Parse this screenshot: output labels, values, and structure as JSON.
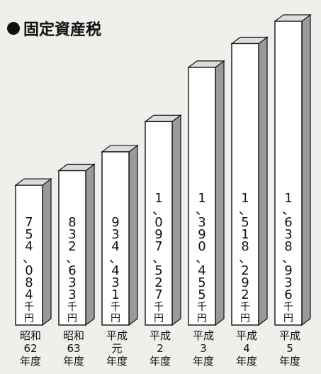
{
  "title": "固定資産税",
  "chart_data": {
    "type": "bar",
    "title": "固定資産税",
    "unit": "千円",
    "categories": [
      [
        "昭和",
        "62",
        "年度"
      ],
      [
        "昭和",
        "63",
        "年度"
      ],
      [
        "平成",
        "元",
        "年度"
      ],
      [
        "平成",
        "2",
        "年度"
      ],
      [
        "平成",
        "3",
        "年度"
      ],
      [
        "平成",
        "4",
        "年度"
      ],
      [
        "平成",
        "5",
        "年度"
      ]
    ],
    "values": [
      754084,
      832633,
      934431,
      1097527,
      1390455,
      1518292,
      1638936
    ],
    "value_labels": [
      [
        "7",
        "5",
        "4",
        "、",
        "0",
        "8",
        "4"
      ],
      [
        "8",
        "3",
        "2",
        "、",
        "6",
        "3",
        "3"
      ],
      [
        "9",
        "3",
        "4",
        "、",
        "4",
        "3",
        "1"
      ],
      [
        "1",
        "、",
        "0",
        "9",
        "7",
        "、",
        "5",
        "2",
        "7"
      ],
      [
        "1",
        "、",
        "3",
        "9",
        "0",
        "、",
        "4",
        "5",
        "5"
      ],
      [
        "1",
        "、",
        "5",
        "1",
        "8",
        "、",
        "2",
        "9",
        "2"
      ],
      [
        "1",
        "、",
        "6",
        "3",
        "8",
        "、",
        "9",
        "3",
        "6"
      ]
    ],
    "colors": {
      "bar_front": "#ffffff",
      "bar_side": "#9a9a9a",
      "bar_top": "#dcdcdc",
      "outline": "#111111"
    }
  }
}
